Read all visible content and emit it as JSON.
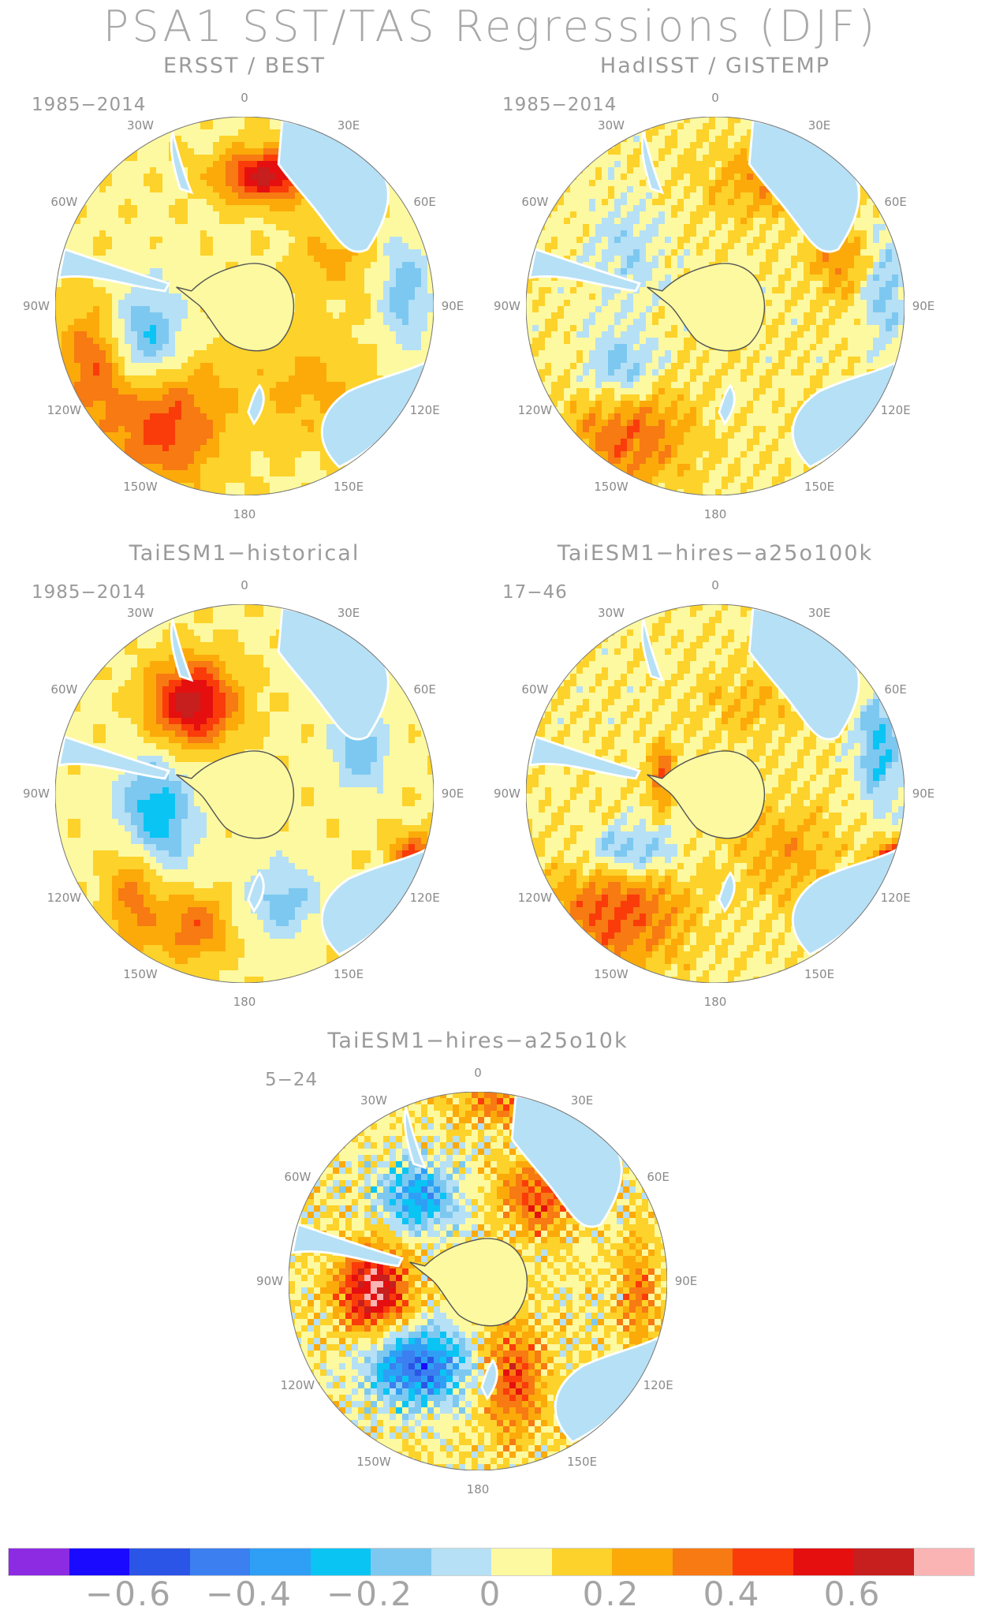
{
  "title": "PSA1 SST/TAS Regressions (DJF)",
  "panels": [
    {
      "title": "ERSST / BEST",
      "period": "1985−2014",
      "pattern": "obs1"
    },
    {
      "title": "HadISST / GISTEMP",
      "period": "1985−2014",
      "pattern": "obs2"
    },
    {
      "title": "TaiESM1−historical",
      "period": "1985−2014",
      "pattern": "hist"
    },
    {
      "title": "TaiESM1−hires−a25o100k",
      "period": "17−46",
      "pattern": "hr100"
    },
    {
      "title": "TaiESM1−hires−a25o10k",
      "period": "5−24",
      "pattern": "hr10"
    }
  ],
  "longitudes": [
    {
      "label": "0",
      "angle": 0
    },
    {
      "label": "30E",
      "angle": 30
    },
    {
      "label": "60E",
      "angle": 60
    },
    {
      "label": "90E",
      "angle": 90
    },
    {
      "label": "120E",
      "angle": 120
    },
    {
      "label": "150E",
      "angle": 150
    },
    {
      "label": "180",
      "angle": 180
    },
    {
      "label": "150W",
      "angle": 210
    },
    {
      "label": "120W",
      "angle": 240
    },
    {
      "label": "90W",
      "angle": 270
    },
    {
      "label": "60W",
      "angle": 300
    },
    {
      "label": "30W",
      "angle": 330
    }
  ],
  "colorbar": {
    "colors": [
      "#8c2be2",
      "#1a0aff",
      "#2b55e6",
      "#3b7ff0",
      "#2f9ff5",
      "#0ac4f4",
      "#7dc8f0",
      "#b6e0f5",
      "#fdf9a0",
      "#fdd22a",
      "#fbaa0a",
      "#f77a12",
      "#fa3c0a",
      "#e50f0f",
      "#c71e1e",
      "#fbb4b4"
    ],
    "labels": [
      "−0.6",
      "−0.4",
      "−0.2",
      "0",
      "0.2",
      "0.4",
      "0.6"
    ],
    "label_values": [
      -0.6,
      -0.4,
      -0.2,
      0,
      0.2,
      0.4,
      0.6
    ],
    "min": -0.8,
    "max": 0.8
  }
}
